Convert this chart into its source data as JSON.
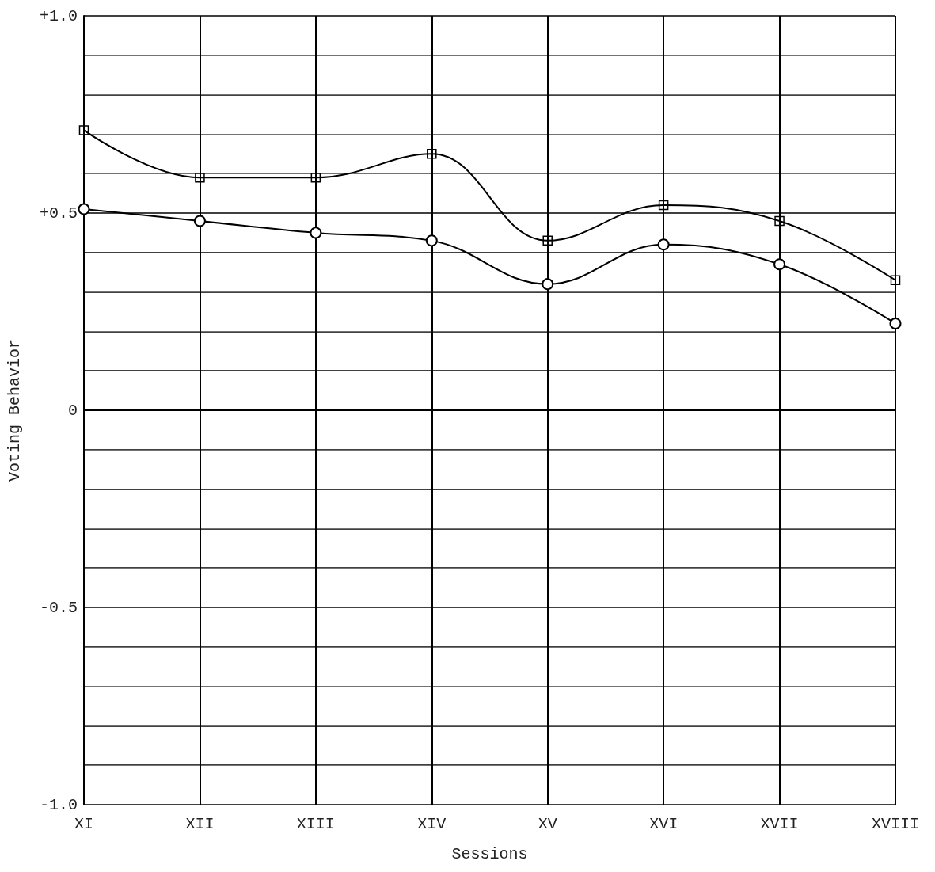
{
  "chart_data": {
    "type": "line",
    "xlabel": "Sessions",
    "ylabel": "Voting Behavior",
    "categories": [
      "XI",
      "XII",
      "XIII",
      "XIV",
      "XV",
      "XVI",
      "XVII",
      "XVIII"
    ],
    "series": [
      {
        "color": "#000000",
        "marker": "square",
        "values": [
          0.71,
          0.59,
          0.59,
          0.65,
          0.43,
          0.52,
          0.48,
          0.33
        ]
      },
      {
        "color": "#000000",
        "marker": "circle",
        "values": [
          0.51,
          0.48,
          0.45,
          0.43,
          0.32,
          0.42,
          0.37,
          0.22
        ]
      }
    ],
    "ylim": [
      -1,
      1
    ],
    "yticks": [
      {
        "value": -1,
        "label": "-1.0"
      },
      {
        "value": -0.9,
        "label": null
      },
      {
        "value": -0.8,
        "label": null
      },
      {
        "value": -0.7,
        "label": null
      },
      {
        "value": -0.6,
        "label": null
      },
      {
        "value": -0.5,
        "label": "-0.5"
      },
      {
        "value": -0.4,
        "label": null
      },
      {
        "value": -0.3,
        "label": null
      },
      {
        "value": -0.2,
        "label": null
      },
      {
        "value": -0.1,
        "label": null
      },
      0,
      {
        "value": 0.1,
        "label": null
      },
      {
        "value": 0.2,
        "label": null
      },
      {
        "value": 0.3,
        "label": null
      },
      {
        "value": 0.4,
        "label": null
      },
      {
        "value": 0.5,
        "label": "+0.5"
      },
      {
        "value": 0.6,
        "label": null
      },
      {
        "value": 0.7,
        "label": null
      },
      {
        "value": 0.8,
        "label": null
      },
      {
        "value": 0.9,
        "label": null
      },
      {
        "value": 1,
        "label": "+1.0"
      }
    ],
    "grid": true,
    "line_style": "solid"
  }
}
